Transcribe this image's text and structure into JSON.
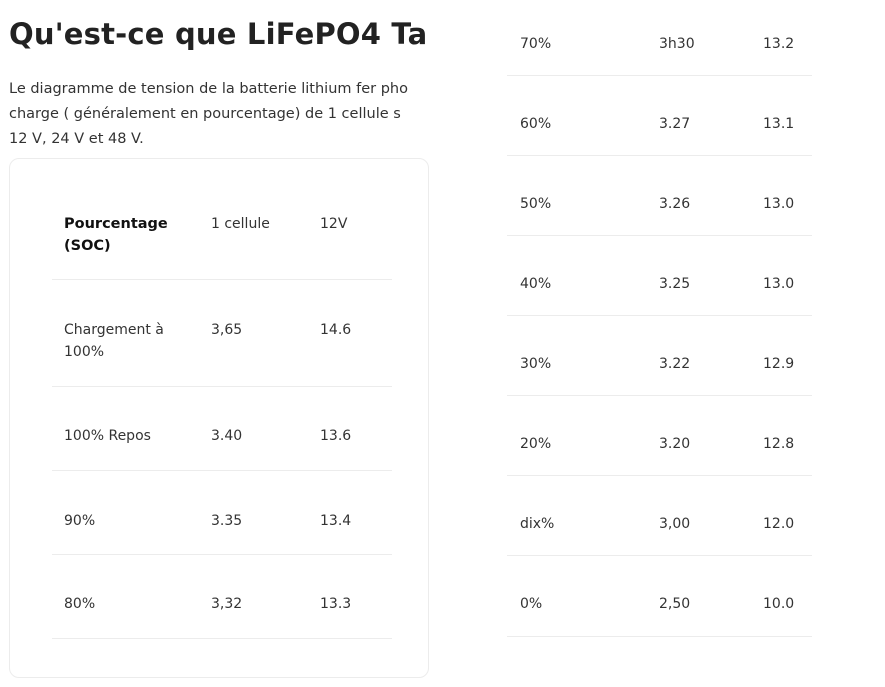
{
  "article": {
    "title": "Qu'est-ce que LiFePO4 Ta",
    "intro_lines": [
      "Le diagramme de tension de la batterie lithium fer pho",
      "charge ( généralement en pourcentage) de 1 cellule s",
      "12 V, 24 V et 48 V."
    ]
  },
  "table": {
    "headers": [
      "Pourcentage (SOC)",
      "1 cellule",
      "12V"
    ],
    "left_rows": [
      [
        "Chargement à 100%",
        "3,65",
        "14.6"
      ],
      [
        "100% Repos",
        "3.40",
        "13.6"
      ],
      [
        "90%",
        "3.35",
        "13.4"
      ],
      [
        "80%",
        "3,32",
        "13.3"
      ]
    ],
    "right_rows": [
      [
        "70%",
        "3h30",
        "13.2"
      ],
      [
        "60%",
        "3.27",
        "13.1"
      ],
      [
        "50%",
        "3.26",
        "13.0"
      ],
      [
        "40%",
        "3.25",
        "13.0"
      ],
      [
        "30%",
        "3.22",
        "12.9"
      ],
      [
        "20%",
        "3.20",
        "12.8"
      ],
      [
        "dix%",
        "3,00",
        "12.0"
      ],
      [
        "0%",
        "2,50",
        "10.0"
      ]
    ]
  }
}
